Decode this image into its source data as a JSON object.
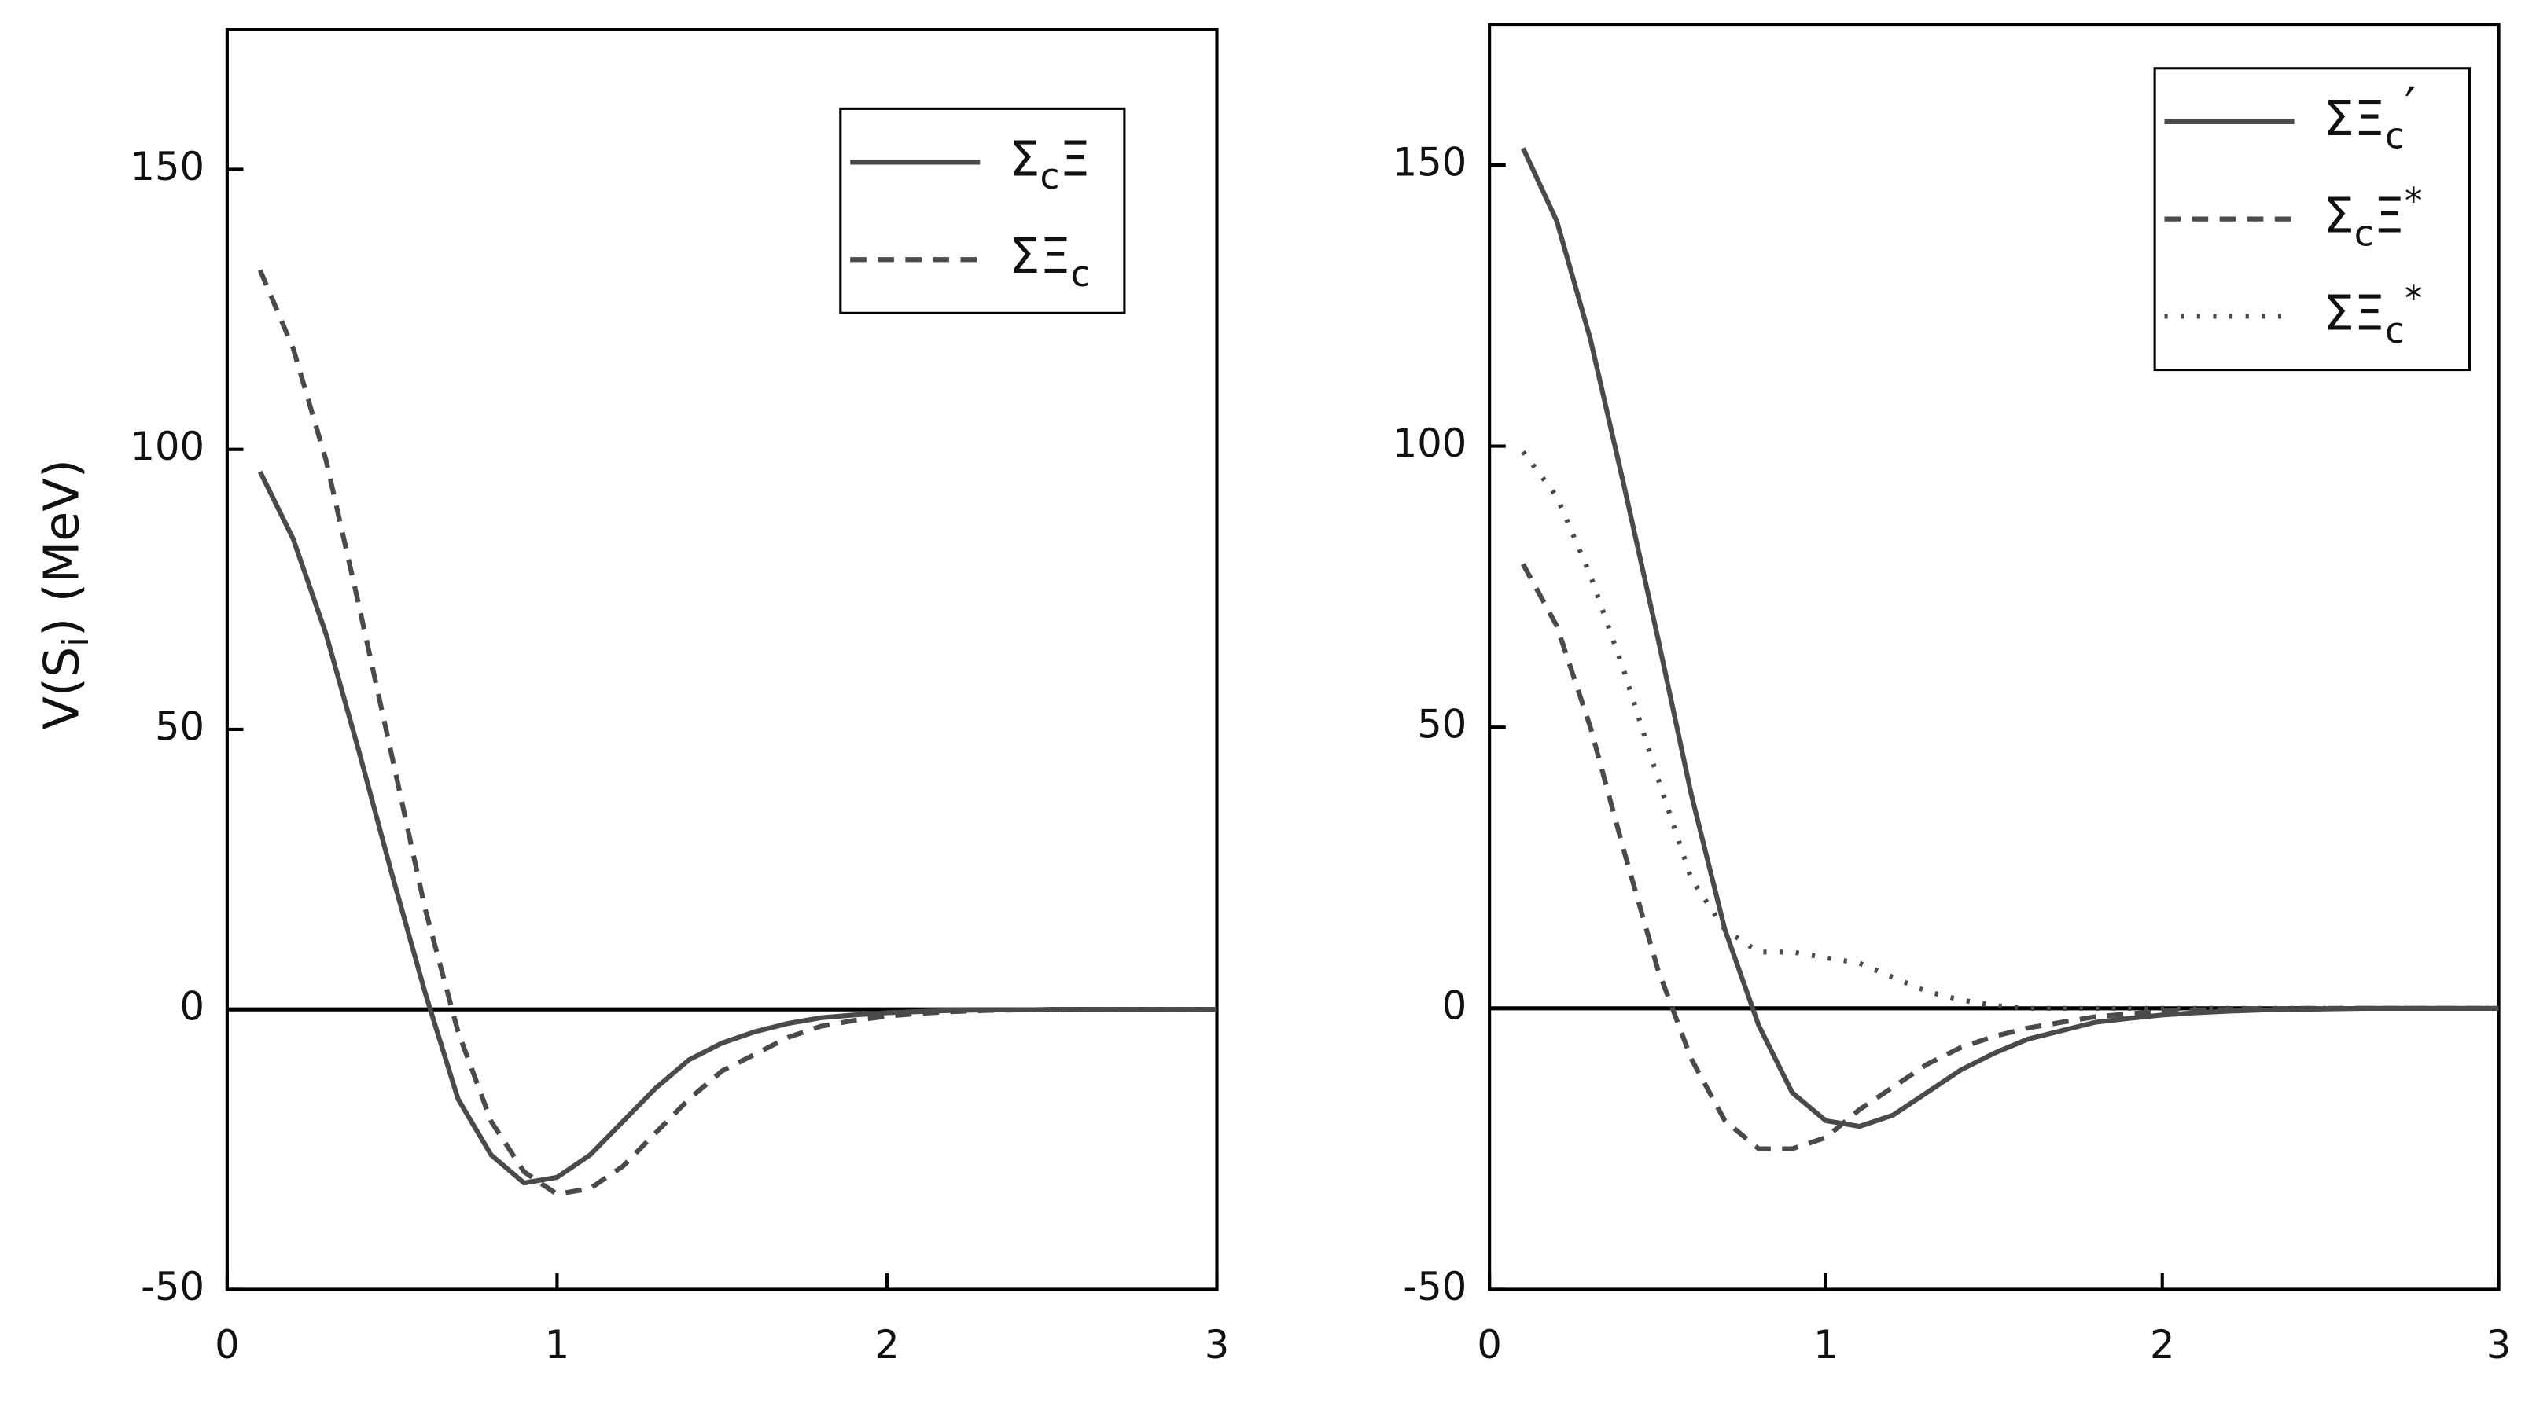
{
  "charts_note_free": null,
  "chart_data": [
    {
      "type": "line",
      "ylabel": {
        "text": "V(S",
        "sub": "i",
        "tail": ") (MeV)"
      },
      "x": [
        0.1,
        0.2,
        0.3,
        0.4,
        0.5,
        0.6,
        0.7,
        0.8,
        0.9,
        1.0,
        1.1,
        1.2,
        1.3,
        1.4,
        1.5,
        1.6,
        1.7,
        1.8,
        1.9,
        2.0,
        2.1,
        2.2,
        2.3,
        2.4,
        2.5,
        2.6,
        2.7,
        2.8,
        2.9,
        3.0
      ],
      "series": [
        {
          "name": "ΣcΞ",
          "color": "#4a4a4a",
          "dash": "solid",
          "values": [
            96,
            84,
            67,
            46,
            24,
            3,
            -16,
            -26,
            -31,
            -30,
            -26,
            -20,
            -14,
            -9,
            -6,
            -4,
            -2.5,
            -1.5,
            -1,
            -0.6,
            -0.4,
            -0.2,
            -0.1,
            -0.1,
            0,
            0,
            0,
            0,
            0,
            0
          ]
        },
        {
          "name": "ΣΞc",
          "color": "#4a4a4a",
          "dash": "dashed",
          "values": [
            132,
            118,
            98,
            72,
            45,
            18,
            -4,
            -20,
            -29,
            -33,
            -32,
            -28,
            -22,
            -16,
            -11,
            -8,
            -5,
            -3,
            -2,
            -1.2,
            -0.7,
            -0.4,
            -0.2,
            -0.1,
            -0.1,
            0,
            0,
            0,
            0,
            0
          ]
        }
      ],
      "xlim": [
        0,
        3
      ],
      "xticks": [
        0,
        1,
        2,
        3
      ],
      "ylim": [
        -50,
        175
      ],
      "yticks": [
        -50,
        0,
        50,
        100,
        150
      ],
      "legend": "upper right"
    },
    {
      "type": "line",
      "x": [
        0.1,
        0.2,
        0.3,
        0.4,
        0.5,
        0.6,
        0.7,
        0.8,
        0.9,
        1.0,
        1.1,
        1.2,
        1.3,
        1.4,
        1.5,
        1.6,
        1.7,
        1.8,
        1.9,
        2.0,
        2.1,
        2.2,
        2.3,
        2.4,
        2.5,
        2.6,
        2.7,
        2.8,
        2.9,
        3.0
      ],
      "series": [
        {
          "name": "ΣΞc′",
          "color": "#4a4a4a",
          "dash": "solid",
          "values": [
            153,
            140,
            119,
            93,
            66,
            38,
            14,
            -3,
            -15,
            -20,
            -21,
            -19,
            -15,
            -11,
            -8,
            -5.5,
            -4,
            -2.5,
            -1.8,
            -1.2,
            -0.8,
            -0.5,
            -0.3,
            -0.2,
            -0.1,
            0,
            0,
            0,
            0,
            0
          ]
        },
        {
          "name": "ΣcΞ*",
          "color": "#4a4a4a",
          "dash": "dashed",
          "values": [
            79,
            68,
            50,
            28,
            7,
            -9,
            -20,
            -25,
            -25,
            -23,
            -18,
            -14,
            -10,
            -7,
            -5,
            -3.5,
            -2.5,
            -1.5,
            -1,
            -0.5,
            -0.3,
            -0.2,
            -0.1,
            0,
            0,
            0,
            0,
            0,
            0,
            0
          ]
        },
        {
          "name": "ΣΞc*",
          "color": "#4a4a4a",
          "dash": "dotted",
          "values": [
            99,
            91,
            77,
            60,
            41,
            23,
            14,
            10,
            10,
            9,
            8,
            5.5,
            3,
            1.5,
            0.5,
            0,
            0,
            0,
            0,
            0,
            0,
            0,
            0,
            0,
            0,
            0,
            0,
            0,
            0,
            0
          ]
        }
      ],
      "xlim": [
        0,
        3
      ],
      "xticks": [
        0,
        1,
        2,
        3
      ],
      "ylim": [
        -50,
        175
      ],
      "yticks": [
        -50,
        0,
        50,
        100,
        150
      ],
      "legend": "upper right"
    }
  ]
}
